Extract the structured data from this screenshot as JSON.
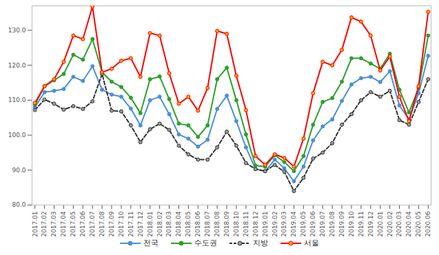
{
  "chart_data": {
    "type": "line",
    "categories": [
      "2017.01",
      "2017.02",
      "2017.03",
      "2017.04",
      "2017.05",
      "2017.06",
      "2017.07",
      "2017.08",
      "2017.09",
      "2017.10",
      "2017.11",
      "2017.12",
      "2018.01",
      "2018.02",
      "2018.03",
      "2018.04",
      "2018.05",
      "2018.06",
      "2018.07",
      "2018.08",
      "2018.09",
      "2018.10",
      "2018.11",
      "2018.12",
      "2019.01",
      "2019.02",
      "2019.03",
      "2019.04",
      "2019.05",
      "2019.06",
      "2019.07",
      "2019.08",
      "2019.09",
      "2019.10",
      "2019.11",
      "2019.12",
      "2020.01",
      "2020.02",
      "2020.03",
      "2020.04",
      "2020.05",
      "2020.06"
    ],
    "series": [
      {
        "name": "전국",
        "color": "#4a90d9",
        "marker": "circle",
        "line_style": "solid",
        "values": [
          108,
          112.3,
          112.7,
          113.2,
          116.7,
          115.5,
          119.7,
          113,
          111.6,
          111,
          107.6,
          102.8,
          110,
          111,
          106,
          100.2,
          99,
          96.7,
          98.7,
          107.5,
          111.3,
          104,
          96.5,
          90.3,
          89.7,
          93,
          90.5,
          86.8,
          91,
          98.5,
          102.5,
          104.5,
          109.8,
          114.5,
          116.3,
          116.7,
          115.2,
          118.3,
          108.5,
          104.5,
          112,
          122.7
        ]
      },
      {
        "name": "수도권",
        "color": "#2ca02c",
        "marker": "circle",
        "line_style": "solid",
        "values": [
          108.7,
          114,
          115.7,
          117.5,
          123,
          121.6,
          127.5,
          118,
          115.3,
          113.8,
          110.7,
          106.3,
          116,
          116.8,
          110.3,
          103.3,
          102.8,
          99.5,
          102.8,
          116,
          119.3,
          110,
          100.2,
          91.3,
          91,
          94.3,
          92.3,
          89.7,
          94,
          103,
          109.5,
          110.6,
          115.3,
          122,
          122,
          120.5,
          119,
          123.3,
          113,
          106.5,
          113.5,
          128.5
        ]
      },
      {
        "name": "지방",
        "color": "#333333",
        "marker": "circle",
        "line_style": "dashed",
        "values": [
          107.2,
          110.2,
          109,
          107.3,
          108.3,
          107.5,
          109.7,
          117.5,
          107,
          106.8,
          102.8,
          98,
          101.7,
          103.3,
          101.5,
          97,
          94.5,
          93,
          93,
          96.5,
          101,
          97,
          92,
          90.3,
          89.7,
          91.5,
          89.5,
          84,
          87.8,
          93.3,
          95,
          97.7,
          103,
          106,
          110,
          112.3,
          111,
          112.7,
          104.3,
          103,
          109.5,
          116
        ]
      },
      {
        "name": "서울",
        "color": "#ff0000",
        "marker": "circle",
        "line_style": "solid",
        "values": [
          109.2,
          114,
          116,
          121,
          128.5,
          127.5,
          136.8,
          118,
          119,
          121.3,
          122,
          116.7,
          129.2,
          128.5,
          117.7,
          109,
          111,
          107,
          113.5,
          129.8,
          129,
          117,
          107.2,
          94,
          91.5,
          94.5,
          93.5,
          91,
          99,
          112,
          121,
          120,
          124.4,
          133.7,
          132.5,
          128.5,
          118.5,
          122.5,
          111,
          104,
          114,
          135.3
        ]
      }
    ],
    "ylim": [
      80,
      137
    ],
    "yticks": [
      {
        "value": 80,
        "label": "80.0"
      },
      {
        "value": 90,
        "label": "90.0"
      },
      {
        "value": 100,
        "label": "100.0"
      },
      {
        "value": 110,
        "label": "110.0"
      },
      {
        "value": 120,
        "label": "120.0"
      },
      {
        "value": 130,
        "label": "130.0"
      }
    ],
    "grid": false,
    "legend": "bottom"
  }
}
